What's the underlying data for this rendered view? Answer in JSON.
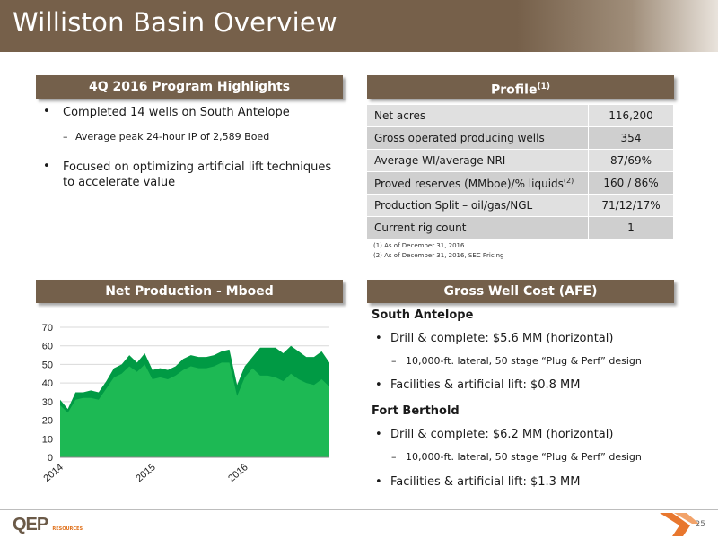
{
  "title": "Williston Basin Overview",
  "highlights": {
    "banner": "4Q 2016 Program Highlights",
    "bullet1": "Completed 14 wells on South Antelope",
    "sub1": "Average peak 24-hour IP of 2,589 Boed",
    "bullet2_line1": "Focused on optimizing artificial lift techniques",
    "bullet2_line2": "to accelerate value"
  },
  "profile": {
    "banner": "Profile",
    "banner_sup": "(1)",
    "rows": [
      {
        "label": "Net acres",
        "value": "116,200"
      },
      {
        "label": "Gross operated producing wells",
        "value": "354"
      },
      {
        "label": "Average WI/average NRI",
        "value": "87/69%"
      },
      {
        "label": "Proved reserves (MMboe)/% liquids",
        "sup": "(2)",
        "value": "160 / 86%"
      },
      {
        "label": "Production Split – oil/gas/NGL",
        "value": "71/12/17%"
      },
      {
        "label": "Current rig count",
        "value": "1"
      }
    ],
    "footnote1": "(1) As of December 31, 2016",
    "footnote2": "(2) As of December 31, 2016, SEC Pricing"
  },
  "production": {
    "banner": "Net Production - Mboed"
  },
  "chart_data": {
    "type": "area",
    "ylim": [
      0,
      70
    ],
    "yticks": [
      0,
      10,
      20,
      30,
      40,
      50,
      60,
      70
    ],
    "xticks": [
      "2014",
      "2015",
      "2016"
    ],
    "xlabel": "",
    "ylabel": "",
    "grid": true,
    "colors": [
      "#009a44",
      "#1db954"
    ],
    "series": [
      {
        "values": [
          31,
          26,
          35,
          35,
          36,
          35,
          41,
          48,
          50,
          55,
          51,
          56,
          47,
          48,
          47,
          49,
          53,
          55,
          54,
          54,
          55,
          57,
          58,
          39,
          49,
          54,
          59,
          59,
          59,
          56,
          60,
          57,
          54,
          54,
          57,
          51
        ]
      },
      {
        "values": [
          28,
          24,
          31,
          32,
          32,
          31,
          37,
          43,
          45,
          49,
          46,
          50,
          42,
          43,
          42,
          44,
          47,
          49,
          48,
          48,
          49,
          51,
          51,
          33,
          43,
          48,
          44,
          44,
          43,
          41,
          45,
          42,
          40,
          39,
          42,
          38
        ]
      }
    ]
  },
  "gwc": {
    "banner": "Gross Well Cost (AFE)",
    "sa_title": "South Antelope",
    "sa_b1": "Drill & complete: $5.6 MM (horizontal)",
    "sa_sub": "10,000-ft. lateral, 50 stage “Plug & Perf” design",
    "sa_b2": "Facilities & artificial lift: $0.8 MM",
    "fb_title": "Fort Berthold",
    "fb_b1": "Drill & complete: $6.2 MM (horizontal)",
    "fb_sub": "10,000-ft. lateral, 50 stage “Plug & Perf” design",
    "fb_b2": "Facilities & artificial lift: $1.3 MM"
  },
  "logo": {
    "text": "QEP",
    "sub": "RESOURCES"
  },
  "page_number": "25"
}
